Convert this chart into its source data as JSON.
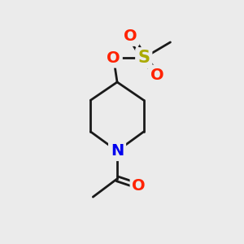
{
  "bg_color": "#ebebeb",
  "bond_color": "#1a1a1a",
  "N_color": "#0000ee",
  "O_color": "#ff2200",
  "S_color": "#aaaa00",
  "line_width": 2.0,
  "font_size_atom": 14,
  "xlim": [
    0,
    10
  ],
  "ylim": [
    0,
    10
  ]
}
